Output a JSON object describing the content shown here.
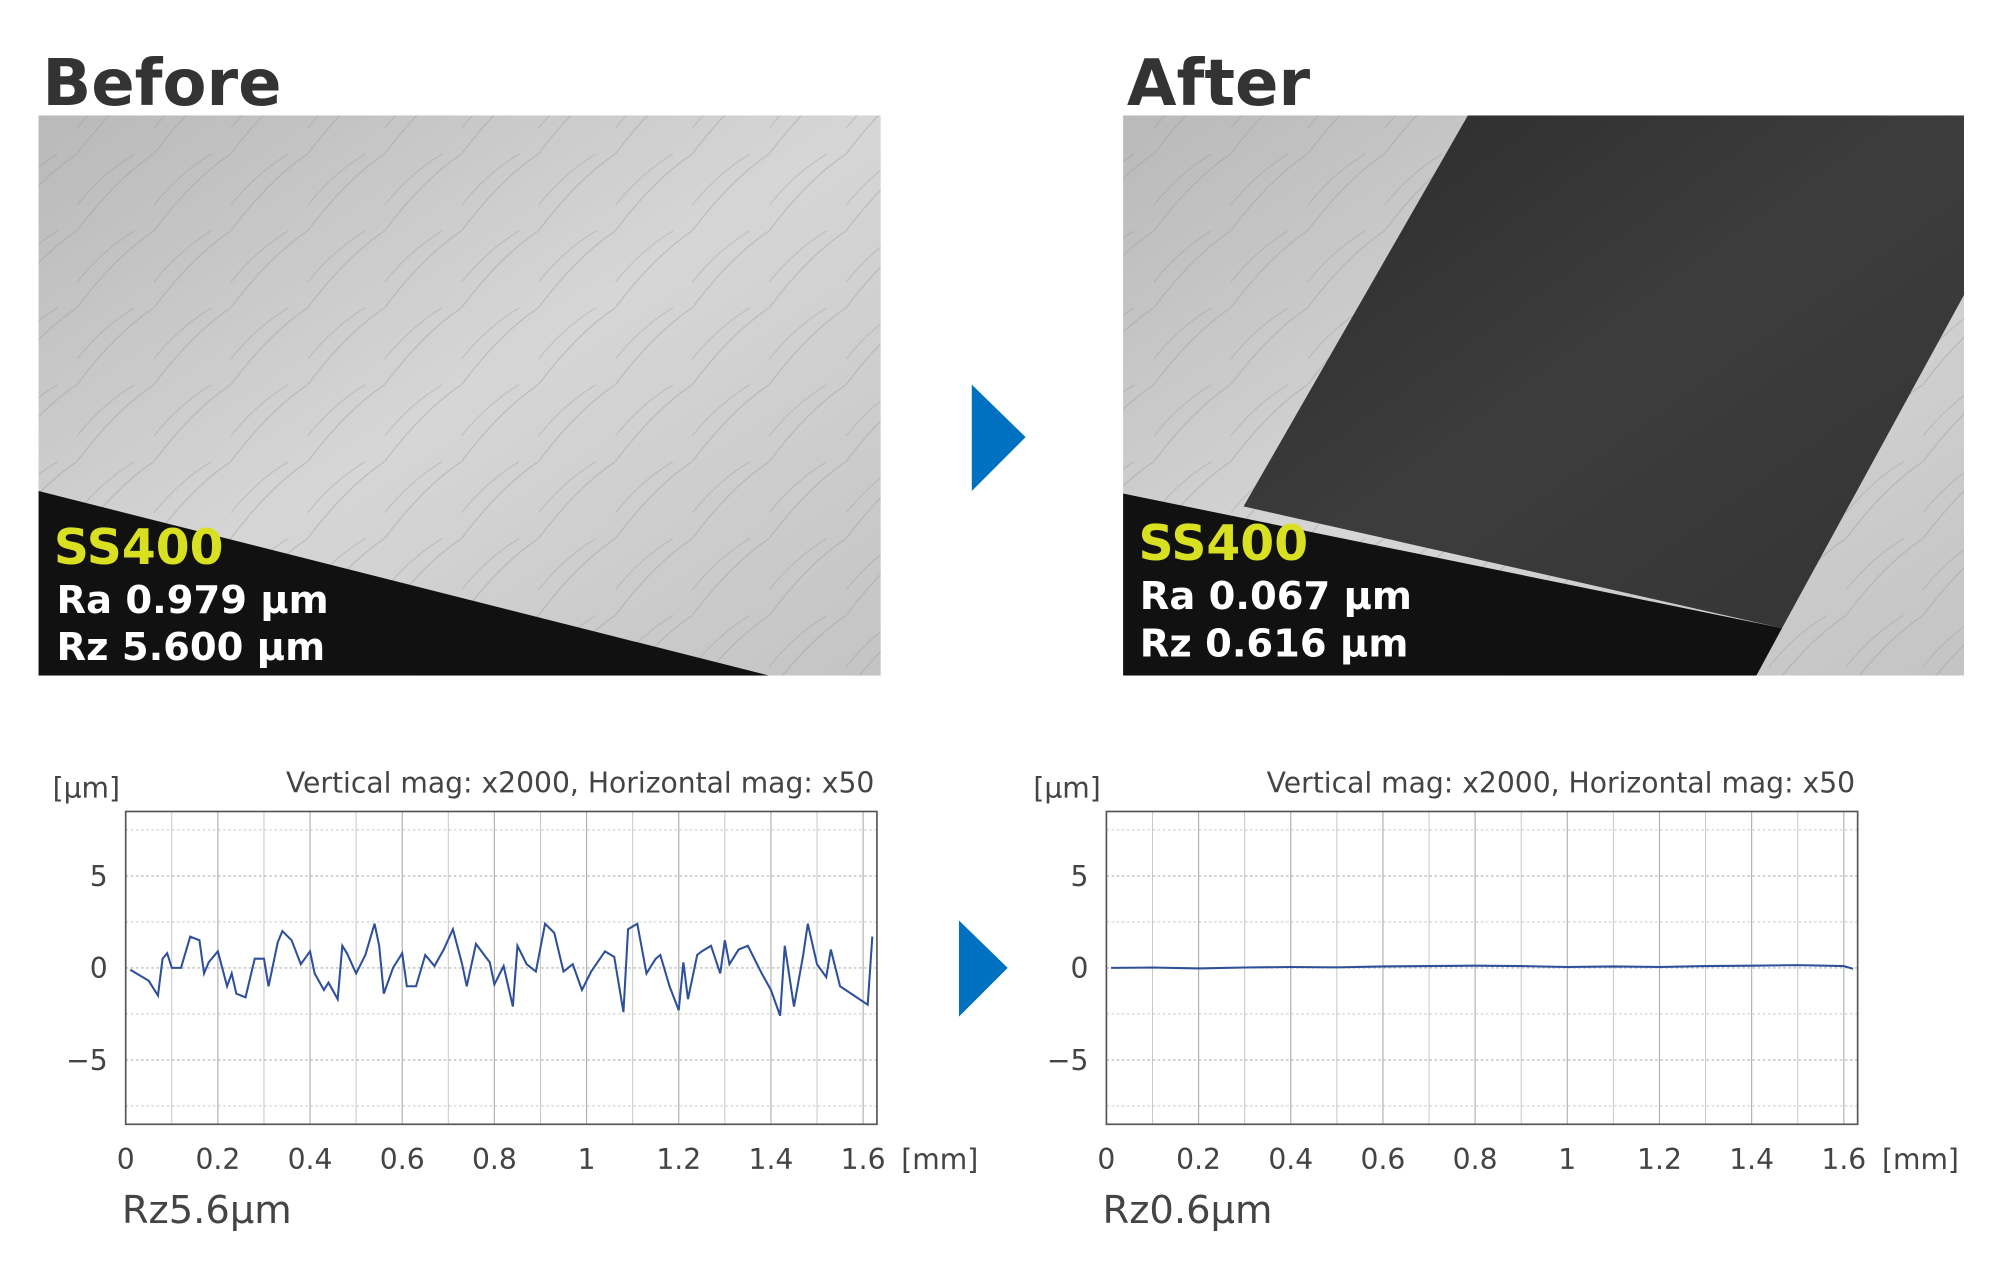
{
  "panels": [
    {
      "title": "Before",
      "material": "SS400",
      "ra": "Ra 0.979 μm",
      "rz": "Rz 5.600 μm"
    },
    {
      "title": "After",
      "material": "SS400",
      "ra": "Ra 0.067 μm",
      "rz": "Rz 0.616 μm"
    }
  ],
  "chart_data": [
    {
      "type": "line",
      "subtitle": "Vertical mag: x2000, Horizontal mag: x50",
      "ylabel": "[μm]",
      "xlabel": "[mm]",
      "caption": "Rz5.6μm",
      "color": "#2e4f9a",
      "grid": true,
      "xlim": [
        0,
        1.63
      ],
      "xticks": [
        0,
        0.2,
        0.4,
        0.6,
        0.8,
        1,
        1.2,
        1.4,
        1.6
      ],
      "minor_xticks": [
        0.1,
        0.3,
        0.5,
        0.7,
        0.9,
        1.1,
        1.3,
        1.5
      ],
      "ylim": [
        -8.5,
        8.5
      ],
      "yticks": [
        5,
        0,
        {
          "value": -5,
          "label": "−5"
        }
      ],
      "minor_yticks": [
        7.5,
        2.5,
        -2.5,
        -7.5
      ],
      "x": [
        0.01,
        0.05,
        0.07,
        0.08,
        0.09,
        0.1,
        0.12,
        0.14,
        0.16,
        0.17,
        0.18,
        0.2,
        0.22,
        0.23,
        0.24,
        0.26,
        0.28,
        0.3,
        0.31,
        0.33,
        0.34,
        0.36,
        0.38,
        0.4,
        0.41,
        0.43,
        0.44,
        0.46,
        0.47,
        0.48,
        0.5,
        0.52,
        0.54,
        0.55,
        0.56,
        0.58,
        0.6,
        0.61,
        0.63,
        0.65,
        0.67,
        0.69,
        0.71,
        0.73,
        0.74,
        0.76,
        0.79,
        0.8,
        0.82,
        0.84,
        0.85,
        0.87,
        0.89,
        0.91,
        0.93,
        0.95,
        0.97,
        0.99,
        1.01,
        1.04,
        1.06,
        1.08,
        1.09,
        1.11,
        1.13,
        1.15,
        1.16,
        1.18,
        1.2,
        1.21,
        1.22,
        1.24,
        1.25,
        1.27,
        1.29,
        1.3,
        1.31,
        1.33,
        1.35,
        1.38,
        1.4,
        1.42,
        1.43,
        1.45,
        1.47,
        1.48,
        1.5,
        1.52,
        1.53,
        1.55,
        1.58,
        1.61,
        1.62
      ],
      "values": [
        -0.1,
        -0.7,
        -1.5,
        0.5,
        0.8,
        0,
        0,
        1.7,
        1.5,
        -0.3,
        0.3,
        0.9,
        -1.0,
        -0.3,
        -1.4,
        -1.6,
        0.5,
        0.5,
        -1.0,
        1.4,
        2.0,
        1.5,
        0.2,
        0.9,
        -0.3,
        -1.2,
        -0.8,
        -1.7,
        1.2,
        0.8,
        -0.3,
        0.7,
        2.4,
        1.2,
        -1.4,
        0,
        0.8,
        -1.0,
        -1.0,
        0.7,
        0.1,
        1.0,
        2.1,
        0.2,
        -1.0,
        1.3,
        0.3,
        -0.9,
        0.1,
        -2.1,
        1.2,
        0.2,
        -0.2,
        2.4,
        1.9,
        -0.2,
        0.2,
        -1.2,
        -0.2,
        0.9,
        0.6,
        -2.4,
        2.1,
        2.4,
        -0.3,
        0.5,
        0.7,
        -1.0,
        -2.3,
        0.3,
        -1.7,
        0.7,
        0.9,
        1.2,
        -0.3,
        1.5,
        0.2,
        1.0,
        1.2,
        -0.3,
        -1.2,
        -2.6,
        1.2,
        -2.1,
        0.7,
        2.4,
        0.2,
        -0.5,
        1.0,
        -1.0,
        -1.5,
        -2.0,
        1.7
      ]
    },
    {
      "type": "line",
      "subtitle": "Vertical mag: x2000, Horizontal mag: x50",
      "ylabel": "[μm]",
      "xlabel": "[mm]",
      "caption": "Rz0.6μm",
      "color": "#2e4f9a",
      "grid": true,
      "xlim": [
        0,
        1.63
      ],
      "xticks": [
        0,
        0.2,
        0.4,
        0.6,
        0.8,
        1,
        1.2,
        1.4,
        1.6
      ],
      "minor_xticks": [
        0.1,
        0.3,
        0.5,
        0.7,
        0.9,
        1.1,
        1.3,
        1.5
      ],
      "ylim": [
        -8.5,
        8.5
      ],
      "yticks": [
        5,
        0,
        {
          "value": -5,
          "label": "−5"
        }
      ],
      "minor_yticks": [
        7.5,
        2.5,
        -2.5,
        -7.5
      ],
      "x": [
        0.01,
        0.1,
        0.2,
        0.3,
        0.4,
        0.5,
        0.6,
        0.7,
        0.8,
        0.9,
        1.0,
        1.1,
        1.2,
        1.3,
        1.4,
        1.5,
        1.6,
        1.62
      ],
      "values": [
        0,
        0.02,
        -0.03,
        0.02,
        0.05,
        0.03,
        0.08,
        0.1,
        0.12,
        0.1,
        0.05,
        0.08,
        0.05,
        0.1,
        0.12,
        0.15,
        0.1,
        -0.05
      ]
    }
  ]
}
